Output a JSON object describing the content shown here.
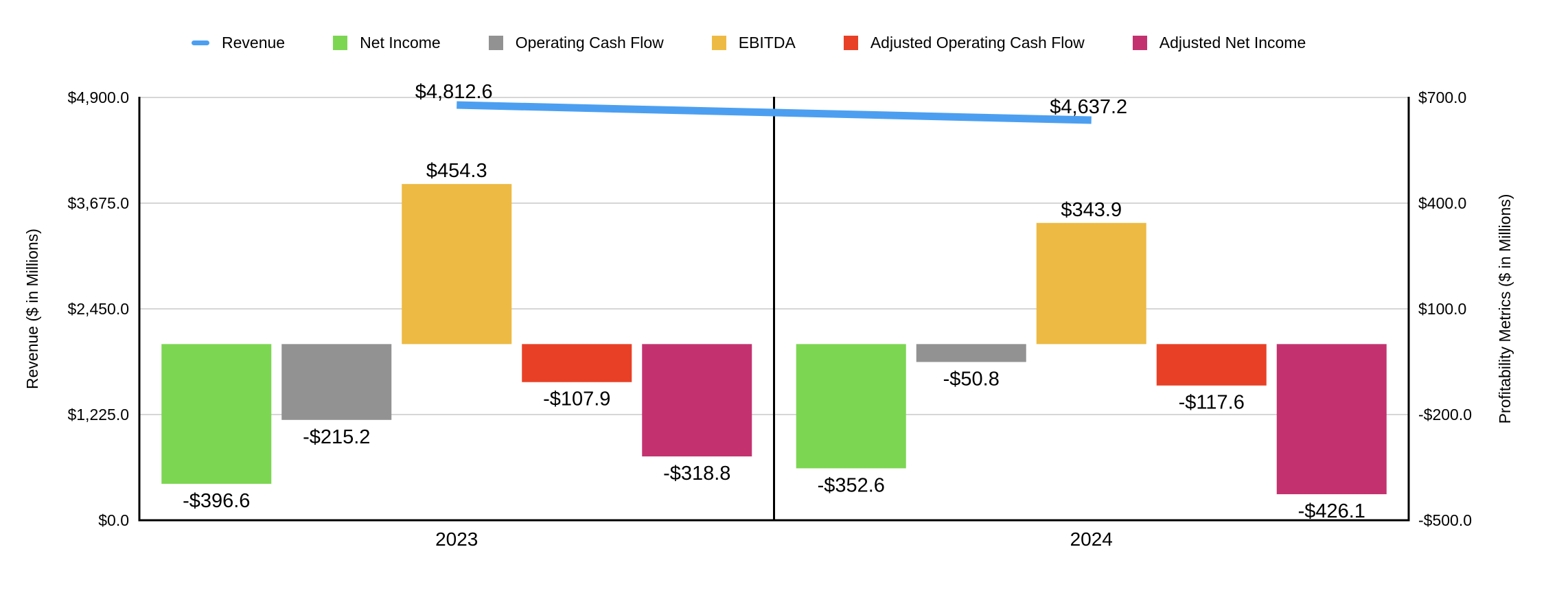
{
  "legend": {
    "items": [
      {
        "label": "Revenue",
        "swatch": "line",
        "color": "#4C9FF0"
      },
      {
        "label": "Net Income",
        "swatch": "square",
        "color": "#7CD652"
      },
      {
        "label": "Operating Cash Flow",
        "swatch": "square",
        "color": "#929292"
      },
      {
        "label": "EBITDA",
        "swatch": "square",
        "color": "#EDBA43"
      },
      {
        "label": "Adjusted Operating Cash Flow",
        "swatch": "square",
        "color": "#E84026"
      },
      {
        "label": "Adjusted Net Income",
        "swatch": "square",
        "color": "#C3326F"
      }
    ]
  },
  "chart_data": {
    "type": "combo-bar-line",
    "categories": [
      "2023",
      "2024"
    ],
    "line_series": {
      "name": "Revenue",
      "axis": "left",
      "color": "#4C9FF0",
      "values": [
        4812.6,
        4637.2
      ],
      "labels": [
        "$4,812.6",
        "$4,637.2"
      ]
    },
    "bar_series": [
      {
        "name": "Net Income",
        "axis": "right",
        "color": "#7CD652",
        "values": [
          -396.6,
          -352.6
        ],
        "labels": [
          "-$396.6",
          "-$352.6"
        ]
      },
      {
        "name": "Operating Cash Flow",
        "axis": "right",
        "color": "#929292",
        "values": [
          -215.2,
          -50.8
        ],
        "labels": [
          "-$215.2",
          "-$50.8"
        ]
      },
      {
        "name": "EBITDA",
        "axis": "right",
        "color": "#EDBA43",
        "values": [
          454.3,
          343.9
        ],
        "labels": [
          "$454.3",
          "$343.9"
        ]
      },
      {
        "name": "Adjusted Operating Cash Flow",
        "axis": "right",
        "color": "#E84026",
        "values": [
          -107.9,
          -117.6
        ],
        "labels": [
          "-$107.9",
          "-$117.6"
        ]
      },
      {
        "name": "Adjusted Net Income",
        "axis": "right",
        "color": "#C3326F",
        "values": [
          -318.8,
          -426.1
        ],
        "labels": [
          "-$318.8",
          "-$426.1"
        ]
      }
    ],
    "left_axis": {
      "title": "Revenue ($ in Millions)",
      "min": 0,
      "max": 4900,
      "tick_values": [
        0,
        1225,
        2450,
        3675,
        4900
      ],
      "tick_labels": [
        "$0.0",
        "$1,225.0",
        "$2,450.0",
        "$3,675.0",
        "$4,900.0"
      ]
    },
    "right_axis": {
      "title": "Profitability Metrics ($ in Millions)",
      "min": -500,
      "max": 700,
      "tick_values": [
        -500,
        -200,
        100,
        400,
        700
      ],
      "tick_labels": [
        "-$500.0",
        "-$200.0",
        "$100.0",
        "$400.0",
        "$700.0"
      ]
    },
    "grid": true,
    "grid_color": "#D6D6D6",
    "axis_color": "#000000",
    "legend_position": "top"
  }
}
